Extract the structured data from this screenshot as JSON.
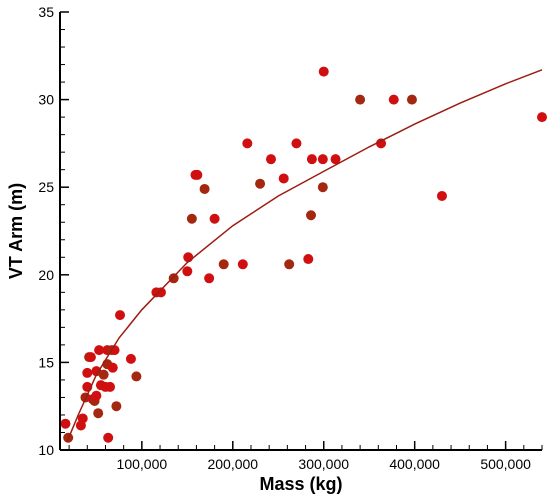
{
  "chart_data": {
    "type": "scatter",
    "title": "",
    "xlabel": "Mass (kg)",
    "ylabel": "VT Arm (m)",
    "xlim": [
      10000,
      540000
    ],
    "ylim": [
      10,
      35
    ],
    "x_ticks": [
      100000,
      200000,
      300000,
      400000,
      500000
    ],
    "x_tick_labels": [
      "100,000",
      "200,000",
      "300,000",
      "400,000",
      "500,000"
    ],
    "y_ticks": [
      10,
      15,
      20,
      25,
      30,
      35
    ],
    "y_tick_labels": [
      "10",
      "15",
      "20",
      "25",
      "30",
      "35"
    ],
    "grid": false,
    "colors": {
      "points_primary": "#d01010",
      "points_secondary": "#a42810",
      "fit_line": "#9b1c12"
    },
    "points": [
      {
        "x": 16000,
        "y": 11.5
      },
      {
        "x": 19000,
        "y": 10.7
      },
      {
        "x": 33000,
        "y": 11.4
      },
      {
        "x": 35000,
        "y": 11.8
      },
      {
        "x": 38000,
        "y": 13.0
      },
      {
        "x": 40000,
        "y": 13.6
      },
      {
        "x": 40000,
        "y": 14.4
      },
      {
        "x": 42000,
        "y": 15.3
      },
      {
        "x": 44000,
        "y": 15.3
      },
      {
        "x": 46000,
        "y": 12.9
      },
      {
        "x": 48000,
        "y": 12.8
      },
      {
        "x": 50000,
        "y": 14.5
      },
      {
        "x": 50000,
        "y": 13.1
      },
      {
        "x": 52000,
        "y": 12.1
      },
      {
        "x": 53000,
        "y": 15.7
      },
      {
        "x": 55000,
        "y": 13.7
      },
      {
        "x": 58000,
        "y": 14.3
      },
      {
        "x": 60000,
        "y": 13.6
      },
      {
        "x": 62000,
        "y": 15.7
      },
      {
        "x": 62000,
        "y": 14.9
      },
      {
        "x": 63000,
        "y": 10.7
      },
      {
        "x": 65000,
        "y": 13.6
      },
      {
        "x": 67000,
        "y": 15.7
      },
      {
        "x": 68000,
        "y": 14.7
      },
      {
        "x": 70000,
        "y": 15.7
      },
      {
        "x": 72000,
        "y": 12.5
      },
      {
        "x": 76000,
        "y": 17.7
      },
      {
        "x": 88000,
        "y": 15.2
      },
      {
        "x": 94000,
        "y": 14.2
      },
      {
        "x": 116000,
        "y": 19.0
      },
      {
        "x": 121000,
        "y": 19.0
      },
      {
        "x": 135000,
        "y": 19.8
      },
      {
        "x": 150000,
        "y": 20.2
      },
      {
        "x": 151000,
        "y": 21.0
      },
      {
        "x": 155000,
        "y": 23.2
      },
      {
        "x": 159000,
        "y": 25.7
      },
      {
        "x": 161000,
        "y": 25.7
      },
      {
        "x": 169000,
        "y": 24.9
      },
      {
        "x": 174000,
        "y": 19.8
      },
      {
        "x": 180000,
        "y": 23.2
      },
      {
        "x": 190000,
        "y": 20.6
      },
      {
        "x": 211000,
        "y": 20.6
      },
      {
        "x": 216000,
        "y": 27.5
      },
      {
        "x": 230000,
        "y": 25.2
      },
      {
        "x": 242000,
        "y": 26.6
      },
      {
        "x": 256000,
        "y": 25.5
      },
      {
        "x": 262000,
        "y": 20.6
      },
      {
        "x": 270000,
        "y": 27.5
      },
      {
        "x": 283000,
        "y": 20.9
      },
      {
        "x": 286000,
        "y": 23.4
      },
      {
        "x": 287000,
        "y": 26.6
      },
      {
        "x": 299000,
        "y": 26.6
      },
      {
        "x": 299000,
        "y": 25.0
      },
      {
        "x": 300000,
        "y": 31.6
      },
      {
        "x": 313000,
        "y": 26.6
      },
      {
        "x": 340000,
        "y": 30.0
      },
      {
        "x": 363000,
        "y": 27.5
      },
      {
        "x": 377000,
        "y": 30.0
      },
      {
        "x": 397000,
        "y": 30.0
      },
      {
        "x": 430000,
        "y": 24.5
      },
      {
        "x": 540000,
        "y": 29.0
      }
    ],
    "fit_curve": [
      {
        "x": 18000,
        "y": 10.5
      },
      {
        "x": 30000,
        "y": 12.0
      },
      {
        "x": 50000,
        "y": 14.3
      },
      {
        "x": 75000,
        "y": 16.4
      },
      {
        "x": 100000,
        "y": 18.0
      },
      {
        "x": 150000,
        "y": 20.7
      },
      {
        "x": 200000,
        "y": 22.8
      },
      {
        "x": 250000,
        "y": 24.5
      },
      {
        "x": 300000,
        "y": 25.9
      },
      {
        "x": 350000,
        "y": 27.3
      },
      {
        "x": 400000,
        "y": 28.6
      },
      {
        "x": 450000,
        "y": 29.8
      },
      {
        "x": 500000,
        "y": 30.9
      },
      {
        "x": 540000,
        "y": 31.7
      }
    ]
  }
}
